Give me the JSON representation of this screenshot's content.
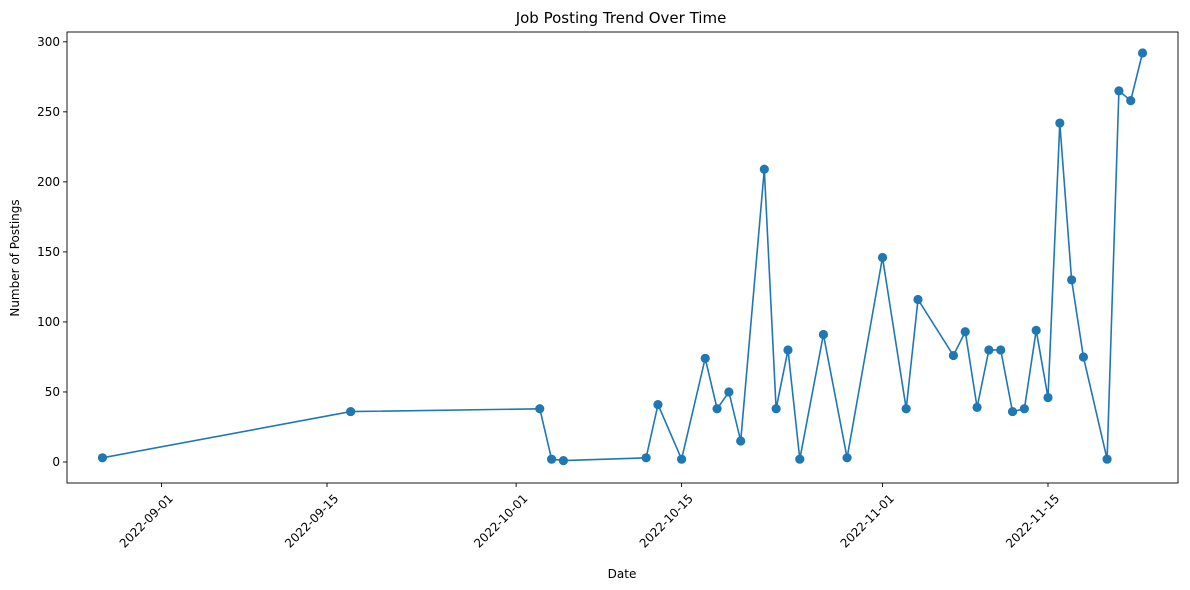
{
  "chart_data": {
    "type": "line",
    "title": "Job Posting Trend Over Time",
    "xlabel": "Date",
    "ylabel": "Number of Postings",
    "x_type": "date",
    "xlim": [
      "2022-08-24",
      "2022-11-26"
    ],
    "ylim": [
      -15,
      307
    ],
    "x_ticks": [
      "2022-09-01",
      "2022-09-15",
      "2022-10-01",
      "2022-10-15",
      "2022-11-01",
      "2022-11-15"
    ],
    "y_ticks": [
      0,
      50,
      100,
      150,
      200,
      250,
      300
    ],
    "grid": false,
    "legend": "none",
    "series": [
      {
        "color": "#1f77b4",
        "marker": "circle",
        "points": [
          {
            "x": "2022-08-27",
            "y": 3
          },
          {
            "x": "2022-09-17",
            "y": 36
          },
          {
            "x": "2022-10-03",
            "y": 38
          },
          {
            "x": "2022-10-04",
            "y": 2
          },
          {
            "x": "2022-10-05",
            "y": 1
          },
          {
            "x": "2022-10-12",
            "y": 3
          },
          {
            "x": "2022-10-13",
            "y": 41
          },
          {
            "x": "2022-10-15",
            "y": 2
          },
          {
            "x": "2022-10-17",
            "y": 74
          },
          {
            "x": "2022-10-18",
            "y": 38
          },
          {
            "x": "2022-10-19",
            "y": 50
          },
          {
            "x": "2022-10-20",
            "y": 15
          },
          {
            "x": "2022-10-22",
            "y": 209
          },
          {
            "x": "2022-10-23",
            "y": 38
          },
          {
            "x": "2022-10-24",
            "y": 80
          },
          {
            "x": "2022-10-25",
            "y": 2
          },
          {
            "x": "2022-10-27",
            "y": 91
          },
          {
            "x": "2022-10-29",
            "y": 3
          },
          {
            "x": "2022-11-01",
            "y": 146
          },
          {
            "x": "2022-11-03",
            "y": 38
          },
          {
            "x": "2022-11-04",
            "y": 116
          },
          {
            "x": "2022-11-07",
            "y": 76
          },
          {
            "x": "2022-11-08",
            "y": 93
          },
          {
            "x": "2022-11-09",
            "y": 39
          },
          {
            "x": "2022-11-10",
            "y": 80
          },
          {
            "x": "2022-11-11",
            "y": 80
          },
          {
            "x": "2022-11-12",
            "y": 36
          },
          {
            "x": "2022-11-13",
            "y": 38
          },
          {
            "x": "2022-11-14",
            "y": 94
          },
          {
            "x": "2022-11-15",
            "y": 46
          },
          {
            "x": "2022-11-16",
            "y": 242
          },
          {
            "x": "2022-11-17",
            "y": 130
          },
          {
            "x": "2022-11-18",
            "y": 75
          },
          {
            "x": "2022-11-20",
            "y": 2
          },
          {
            "x": "2022-11-21",
            "y": 265
          },
          {
            "x": "2022-11-22",
            "y": 258
          },
          {
            "x": "2022-11-23",
            "y": 292
          }
        ]
      }
    ]
  }
}
